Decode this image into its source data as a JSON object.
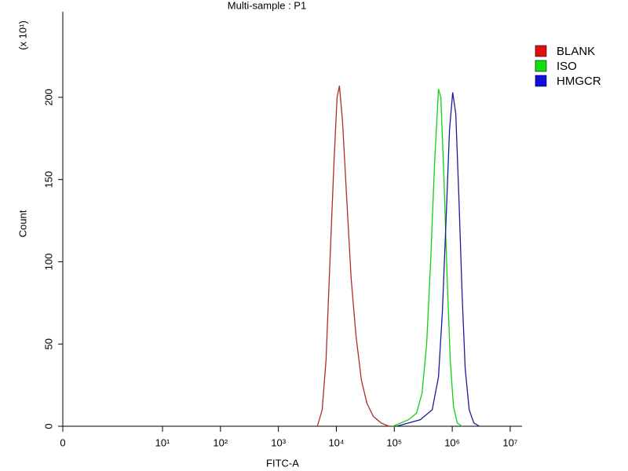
{
  "chart_data": {
    "type": "line",
    "title": "Multi-sample : P1",
    "x_label": "FITC-A",
    "y_label": "Count",
    "y_multiplier": "(x 10¹)",
    "xscale": "log",
    "xlim": [
      0,
      16000000
    ],
    "xticks": [
      0,
      {
        "value": 10,
        "label": "10¹"
      },
      {
        "value": 100,
        "label": "10²"
      },
      {
        "value": 1000,
        "label": "10³"
      },
      {
        "value": 10000,
        "label": "10⁴"
      },
      {
        "value": 100000,
        "label": "10⁵"
      },
      {
        "value": 1000000,
        "label": "10⁶"
      },
      {
        "value": 10000000,
        "label": "10⁷"
      }
    ],
    "ylim": [
      0,
      252
    ],
    "yticks": [
      0,
      50,
      100,
      150,
      200
    ],
    "legend": "right",
    "series": [
      {
        "name": "BLANK",
        "color": "#e01010",
        "line_color": "#b02a2a",
        "x": [
          4700,
          5700,
          6640,
          7760,
          9080,
          10300,
          11300,
          12800,
          15000,
          18000,
          21800,
          27100,
          33700,
          43300,
          59200,
          80900
        ],
        "values": [
          0,
          10,
          40,
          100,
          160,
          200,
          207,
          185,
          140,
          90,
          55,
          28,
          14,
          6,
          2,
          0
        ]
      },
      {
        "name": "ISO",
        "color": "#10e010",
        "line_color": "#10d010",
        "x": [
          94600,
          129000,
          177000,
          242000,
          301000,
          362000,
          424000,
          495000,
          579000,
          636000,
          721000,
          817000,
          925000,
          1050000,
          1220000,
          1480000
        ],
        "values": [
          0,
          2,
          4,
          8,
          20,
          50,
          100,
          160,
          205,
          200,
          150,
          90,
          40,
          12,
          2,
          0
        ]
      },
      {
        "name": "HMGCR",
        "color": "#1010e0",
        "line_color": "#1a1a9c",
        "x": [
          110000,
          177000,
          282000,
          451000,
          579000,
          676000,
          791000,
          897000,
          1020000,
          1150000,
          1300000,
          1480000,
          1670000,
          1960000,
          2360000,
          2940000
        ],
        "values": [
          0,
          2,
          4,
          10,
          30,
          70,
          130,
          180,
          203,
          190,
          140,
          80,
          35,
          10,
          2,
          0
        ]
      }
    ]
  }
}
